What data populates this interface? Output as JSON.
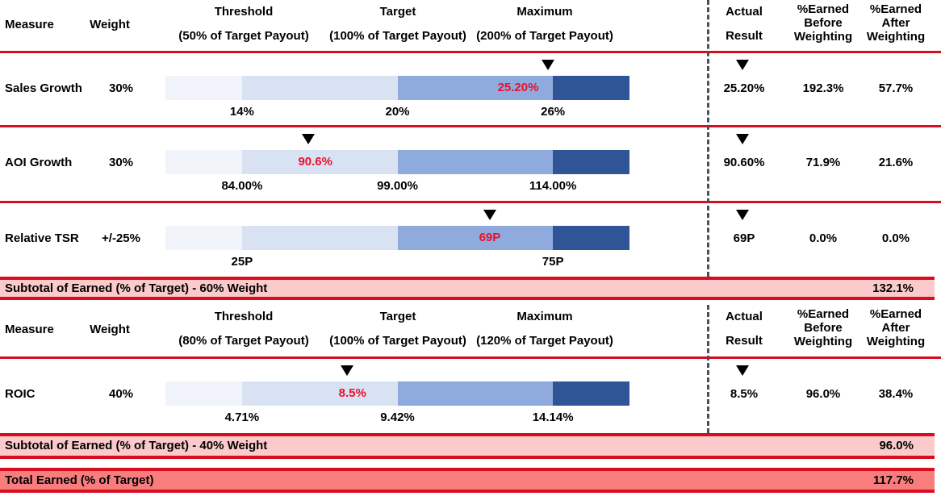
{
  "colors": {
    "red_line": "#d60e1f",
    "red_value_text": "#e8112d",
    "subtotal_bg": "#fbcaca",
    "total_bg": "#fa7d7d",
    "dashed_separator": "#47505c",
    "bar_segments": [
      "#f0f4fa",
      "#d9e2f3",
      "#8faadc",
      "#2f5597"
    ],
    "marker": "#000000",
    "text": "#000000"
  },
  "chart_data": {
    "type": "table",
    "description": "Incentive payout scorecard: each measure has a threshold/target/maximum gauge bar with a black marker and red label at the actual result",
    "sections": [
      {
        "header": {
          "measure": "Measure",
          "weight": "Weight",
          "threshold_title": "Threshold",
          "threshold_sub": "(50% of Target Payout)",
          "target_title": "Target",
          "target_sub": "(100% of Target Payout)",
          "maximum_title": "Maximum",
          "maximum_sub": "(200% of Target Payout)",
          "actual_result": [
            "Actual",
            "Result"
          ],
          "earned_before": [
            "%Earned",
            "Before",
            "Weighting"
          ],
          "earned_after": [
            "%Earned",
            "After",
            "Weighting"
          ]
        },
        "rows": [
          {
            "measure": "Sales Growth",
            "weight": "30%",
            "ticks": [
              {
                "text": "14%",
                "pct": 16.5
              },
              {
                "text": "20%",
                "pct": 50
              },
              {
                "text": "26%",
                "pct": 83.5
              }
            ],
            "marker_pct": 82.4,
            "result": {
              "label": "25.20%",
              "pct": 76
            },
            "actual": "25.20%",
            "earned_before": "192.3%",
            "earned_after": "57.7%"
          },
          {
            "measure": "AOI Growth",
            "weight": "30%",
            "ticks": [
              {
                "text": "84.00%",
                "pct": 16.5
              },
              {
                "text": "99.00%",
                "pct": 50
              },
              {
                "text": "114.00%",
                "pct": 83.5
              }
            ],
            "marker_pct": 30.8,
            "result": {
              "label": "90.6%",
              "pct": 32.3
            },
            "actual": "90.60%",
            "earned_before": "71.9%",
            "earned_after": "21.6%"
          },
          {
            "measure": "Relative TSR",
            "weight": "+/-25%",
            "ticks": [
              {
                "text": "25P",
                "pct": 16.5
              },
              {
                "text": "75P",
                "pct": 83.5
              }
            ],
            "marker_pct": 69.9,
            "result": {
              "label": "69P",
              "pct": 69.9
            },
            "actual": "69P",
            "earned_before": "0.0%",
            "earned_after": "0.0%"
          }
        ],
        "subtotal": {
          "label": "Subtotal of Earned (% of Target) - 60% Weight",
          "value": "132.1%"
        }
      },
      {
        "header": {
          "measure": "Measure",
          "weight": "Weight",
          "threshold_title": "Threshold",
          "threshold_sub": "(80% of Target Payout)",
          "target_title": "Target",
          "target_sub": "(100% of Target Payout)",
          "maximum_title": "Maximum",
          "maximum_sub": "(120% of Target Payout)",
          "actual_result": [
            "Actual",
            "Result"
          ],
          "earned_before": [
            "%Earned",
            "Before",
            "Weighting"
          ],
          "earned_after": [
            "%Earned",
            "After",
            "Weighting"
          ]
        },
        "rows": [
          {
            "measure": "ROIC",
            "weight": "40%",
            "ticks": [
              {
                "text": "4.71%",
                "pct": 16.5
              },
              {
                "text": "9.42%",
                "pct": 50
              },
              {
                "text": "14.14%",
                "pct": 83.5
              }
            ],
            "marker_pct": 39.1,
            "result": {
              "label": "8.5%",
              "pct": 40.3
            },
            "actual": "8.5%",
            "earned_before": "96.0%",
            "earned_after": "38.4%"
          }
        ],
        "subtotal": {
          "label": "Subtotal of Earned (% of Target) - 40% Weight",
          "value": "96.0%"
        }
      }
    ],
    "total": {
      "label": "Total Earned (% of Target)",
      "value": "117.7%"
    }
  }
}
